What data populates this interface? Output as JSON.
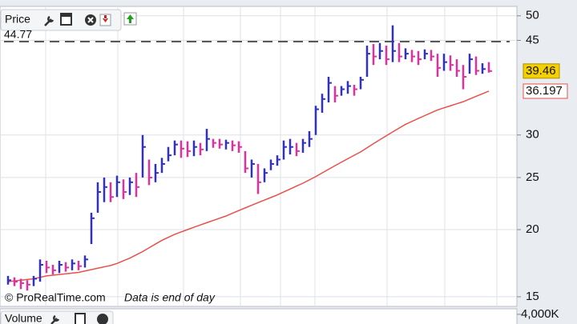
{
  "chart_data": {
    "type": "ohlc",
    "title": "Price",
    "log_scale": true,
    "grid": true,
    "ylim": [
      14.54,
      51.7
    ],
    "yticks": [
      15,
      20,
      25,
      30,
      45,
      50
    ],
    "up_color": "#3030c8",
    "down_color": "#e0309a",
    "high": [
      16.4,
      16.3,
      16.2,
      16.1,
      16.4,
      17.6,
      17.5,
      17.2,
      17.5,
      17.4,
      17.6,
      17.5,
      17.9,
      21.5,
      24.5,
      25.0,
      24.5,
      25.2,
      24.8,
      25.0,
      25.5,
      30.0,
      27.0,
      26.5,
      27.2,
      28.5,
      29.3,
      29.3,
      29.2,
      29.3,
      29.0,
      30.8,
      29.5,
      29.5,
      29.4,
      29.3,
      29.2,
      28.0,
      27.0,
      26.5,
      26.0,
      27.0,
      27.5,
      29.3,
      29.5,
      29.0,
      29.5,
      30.5,
      34.0,
      35.8,
      38.5,
      37.0,
      37.0,
      37.8,
      37.2,
      38.5,
      44.0,
      44.3,
      44.5,
      44.0,
      48.0,
      44.5,
      43.5,
      43.2,
      43.0,
      43.3,
      43.2,
      42.5,
      42.5,
      42.2,
      41.5,
      40.5,
      42.5,
      42.0,
      40.8,
      41.0
    ],
    "low": [
      15.8,
      15.7,
      15.5,
      15.4,
      15.7,
      16.0,
      16.6,
      16.5,
      16.6,
      16.7,
      16.8,
      16.8,
      17.0,
      18.8,
      21.5,
      22.5,
      22.5,
      23.0,
      22.8,
      23.2,
      23.0,
      25.0,
      24.2,
      24.5,
      25.5,
      26.8,
      27.5,
      27.2,
      27.3,
      27.4,
      27.5,
      28.0,
      28.4,
      28.3,
      28.2,
      28.0,
      27.8,
      25.5,
      25.0,
      23.3,
      24.5,
      25.8,
      26.3,
      27.0,
      27.6,
      27.4,
      27.8,
      28.5,
      30.0,
      33.0,
      34.5,
      34.5,
      35.5,
      35.8,
      35.5,
      36.5,
      38.5,
      40.5,
      41.5,
      40.5,
      41.0,
      41.0,
      41.5,
      41.0,
      40.5,
      41.5,
      41.2,
      38.5,
      39.5,
      39.5,
      38.5,
      36.5,
      39.0,
      38.8,
      39.0,
      39.2
    ],
    "close": [
      16.1,
      16.0,
      15.9,
      15.8,
      16.2,
      17.2,
      17.0,
      16.8,
      17.2,
      17.0,
      17.3,
      17.1,
      17.6,
      21.0,
      23.5,
      24.0,
      23.0,
      24.5,
      23.5,
      24.5,
      24.0,
      28.5,
      25.0,
      25.5,
      26.5,
      27.5,
      28.8,
      28.3,
      28.0,
      28.5,
      28.2,
      29.5,
      29.0,
      28.8,
      29.0,
      28.7,
      28.5,
      26.0,
      26.5,
      24.5,
      25.5,
      26.5,
      27.0,
      28.5,
      28.5,
      28.0,
      29.0,
      29.5,
      33.5,
      35.0,
      37.5,
      35.5,
      36.5,
      37.0,
      36.5,
      38.0,
      42.5,
      42.0,
      43.0,
      41.5,
      43.0,
      42.0,
      42.5,
      42.0,
      41.5,
      42.5,
      42.0,
      40.0,
      41.0,
      40.5,
      39.5,
      38.5,
      41.5,
      39.5,
      39.8,
      39.46
    ],
    "close_label_color": "#f5d000",
    "moving_average": {
      "color": "#e8504a",
      "values": [
        16.0,
        16.05,
        16.1,
        16.15,
        16.2,
        16.3,
        16.4,
        16.45,
        16.5,
        16.55,
        16.6,
        16.65,
        16.75,
        16.85,
        16.95,
        17.05,
        17.15,
        17.3,
        17.5,
        17.7,
        17.95,
        18.2,
        18.5,
        18.8,
        19.1,
        19.35,
        19.6,
        19.8,
        20.0,
        20.2,
        20.4,
        20.6,
        20.8,
        21.0,
        21.2,
        21.45,
        21.7,
        21.95,
        22.2,
        22.45,
        22.7,
        22.95,
        23.2,
        23.5,
        23.8,
        24.1,
        24.4,
        24.75,
        25.1,
        25.5,
        25.9,
        26.3,
        26.7,
        27.1,
        27.5,
        27.9,
        28.4,
        28.9,
        29.4,
        29.9,
        30.4,
        30.9,
        31.4,
        31.8,
        32.2,
        32.6,
        33.0,
        33.4,
        33.7,
        34.0,
        34.3,
        34.6,
        35.0,
        35.4,
        35.8,
        36.197
      ]
    },
    "reference_line": {
      "value": 44.77,
      "label": "44.77"
    },
    "copyright": "© ProRealTime.com",
    "note": "Data is end of day",
    "volume": {
      "title": "Volume",
      "yticks": [
        {
          "value": 4000000,
          "label": "4,000K"
        }
      ],
      "ylim": [
        0,
        4500000
      ]
    }
  }
}
